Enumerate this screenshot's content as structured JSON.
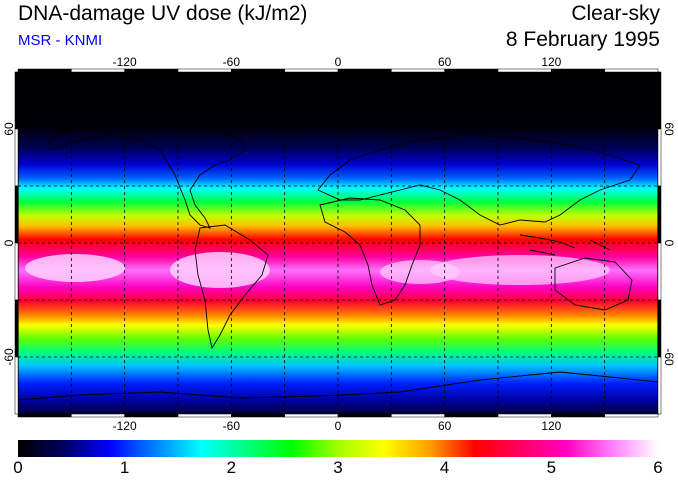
{
  "header": {
    "title": "DNA-damage UV dose (kJ/m2)",
    "source": "MSR - KNMI",
    "condition": "Clear-sky",
    "date": "8 February 1995"
  },
  "colors": {
    "source_text": "#0000ff",
    "grid": "#000000",
    "colormap": [
      "#000000",
      "#000060",
      "#0000ff",
      "#0080ff",
      "#00ffff",
      "#00ff80",
      "#00ff00",
      "#a0ff00",
      "#ffff00",
      "#ffa000",
      "#ff0000",
      "#ff0060",
      "#ff00c0",
      "#ff80ff",
      "#ffffff"
    ]
  },
  "map": {
    "lon_ticks": [
      "-120",
      "-60",
      "0",
      "60",
      "120"
    ],
    "lat_ticks": [
      "60",
      "0",
      "-60"
    ],
    "lon_range": [
      -180,
      180
    ],
    "lat_range": [
      -90,
      90
    ],
    "gridlines_every_deg": 30
  },
  "colorbar": {
    "min": 0,
    "max": 6,
    "tick_labels": [
      "0",
      "1",
      "2",
      "3",
      "4",
      "5",
      "6"
    ]
  }
}
